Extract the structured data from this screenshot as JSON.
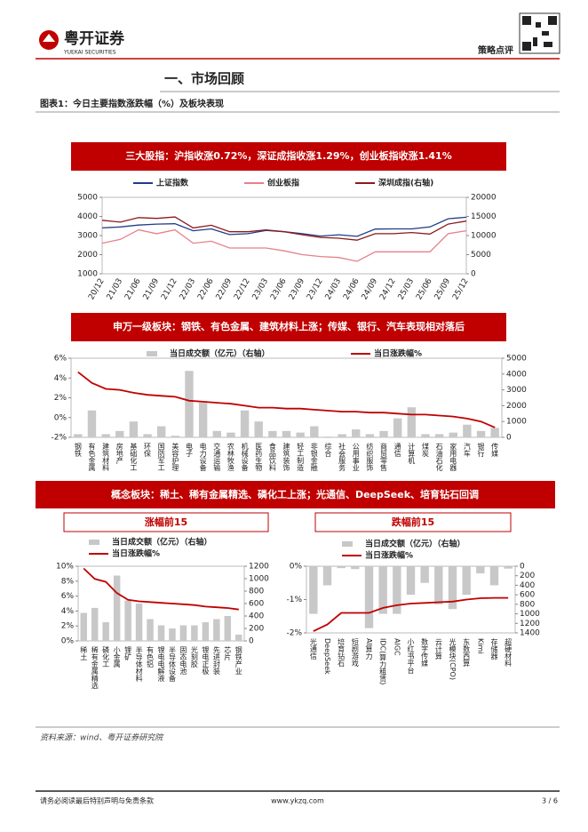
{
  "header": {
    "company": "粤开证券",
    "company_en": "YUEKAI SECURITIES",
    "report_type": "策略点评"
  },
  "section_title": "一、市场回顾",
  "figure_caption": "图表1：今日主要指数涨跌幅（%）及板块表现",
  "concept_title": "概念板块：稀土、稀有金属精选、磷化工上涨；光通信、DeepSeek、培育钻石回调",
  "chart_data": [
    {
      "type": "line",
      "title": "三大股指：沪指收涨0.72%，深证成指收涨1.29%，创业板指收涨1.41%",
      "categories": [
        "20/12",
        "21/03",
        "21/06",
        "21/09",
        "21/12",
        "22/03",
        "22/06",
        "22/09",
        "22/12",
        "23/03",
        "23/06",
        "23/09",
        "23/12",
        "24/03",
        "24/06",
        "24/09",
        "24/12",
        "25/03",
        "25/06",
        "25/09",
        "25/12"
      ],
      "series": [
        {
          "name": "上证指数",
          "color": "#1f3c88",
          "values": [
            3400,
            3450,
            3550,
            3600,
            3620,
            3250,
            3350,
            3050,
            3100,
            3270,
            3200,
            3100,
            2970,
            3040,
            2960,
            3340,
            3350,
            3350,
            3450,
            3880,
            3960
          ]
        },
        {
          "name": "创业板指",
          "color": "#e8808a",
          "values": [
            2600,
            2800,
            3300,
            3100,
            3300,
            2600,
            2700,
            2350,
            2350,
            2350,
            2200,
            2000,
            1900,
            1850,
            1650,
            2150,
            2150,
            2150,
            2150,
            3100,
            3250
          ]
        },
        {
          "name": "深圳成指(右轴)",
          "color": "#8b1a1a",
          "axis": "y2",
          "values": [
            14000,
            13500,
            14700,
            14500,
            14850,
            12000,
            12700,
            11000,
            11000,
            11500,
            11000,
            10200,
            9500,
            9300,
            8800,
            10500,
            10500,
            10800,
            10400,
            13000,
            13800
          ]
        }
      ],
      "ylim": [
        1000,
        5000
      ],
      "yticks": [
        1000,
        2000,
        3000,
        4000,
        5000
      ],
      "y2lim": [
        0,
        20000
      ],
      "y2ticks": [
        0,
        5000,
        10000,
        15000,
        20000
      ]
    },
    {
      "type": "bar-line",
      "title": "申万一级板块：钢铁、有色金属、建筑材料上涨；传媒、银行、汽车表现相对落后",
      "categories": [
        "钢铁",
        "有色金属",
        "建筑材料",
        "房地产",
        "基础化工",
        "环保",
        "国防军工",
        "美容护理",
        "电子",
        "电力设备",
        "交通运输",
        "农林牧渔",
        "机械设备",
        "医药生物",
        "食品饮料",
        "建筑装饰",
        "轻工制造",
        "非银金融",
        "综合",
        "社会服务",
        "公用事业",
        "纺织服饰",
        "商贸零售",
        "通信",
        "计算机",
        "煤炭",
        "石油石化",
        "家用电器",
        "汽车",
        "银行",
        "传媒"
      ],
      "series": [
        {
          "name": "当日成交额（亿元）（右轴）",
          "type": "bar",
          "color": "#c8c8c8",
          "axis": "y2",
          "values": [
            200,
            1700,
            200,
            400,
            1000,
            200,
            700,
            100,
            4200,
            2200,
            400,
            300,
            1700,
            1000,
            400,
            400,
            300,
            700,
            50,
            200,
            500,
            200,
            400,
            1200,
            1900,
            200,
            200,
            300,
            800,
            400,
            600
          ]
        },
        {
          "name": "当日涨跌幅%",
          "type": "line",
          "color": "#c00000",
          "values": [
            4.6,
            3.5,
            2.9,
            2.8,
            2.5,
            2.3,
            2.2,
            2.1,
            1.7,
            1.6,
            1.5,
            1.4,
            1.2,
            1.0,
            1.0,
            0.9,
            0.9,
            0.8,
            0.7,
            0.6,
            0.6,
            0.5,
            0.5,
            0.4,
            0.3,
            0.3,
            0.2,
            0.1,
            -0.1,
            -0.4,
            -1.0
          ]
        }
      ],
      "ylim": [
        -2,
        6
      ],
      "yticks": [
        {
          "value": -2,
          "label": "-2%"
        },
        {
          "value": 0,
          "label": "0%"
        },
        {
          "value": 2,
          "label": "2%"
        },
        {
          "value": 4,
          "label": "4%"
        },
        {
          "value": 6,
          "label": "6%"
        }
      ],
      "y2lim": [
        0,
        5000
      ],
      "y2ticks": [
        0,
        1000,
        2000,
        3000,
        4000,
        5000
      ]
    },
    {
      "type": "bar-line",
      "title": "涨幅前15",
      "categories": [
        "稀土",
        "稀有金属精选",
        "磷化工",
        "小金属",
        "锂矿",
        "半导体材料",
        "有色铝",
        "锂电电解液",
        "半导体设备",
        "固态电池",
        "光刻胶",
        "锂电正极",
        "先进封装",
        "芯片",
        "钢铁产业"
      ],
      "series": [
        {
          "name": "当日成交额（亿元）（右轴）",
          "type": "bar",
          "color": "#c8c8c8",
          "axis": "y2",
          "values": [
            450,
            530,
            300,
            1050,
            650,
            600,
            350,
            250,
            200,
            250,
            250,
            300,
            350,
            400,
            100
          ]
        },
        {
          "name": "当日涨跌幅%",
          "type": "line",
          "color": "#c00000",
          "values": [
            9.7,
            8.3,
            7.9,
            6.4,
            5.5,
            5.3,
            5.2,
            5.1,
            5.0,
            4.9,
            4.8,
            4.6,
            4.5,
            4.4,
            4.2
          ]
        }
      ],
      "ylim": [
        0,
        10
      ],
      "yticks": [
        {
          "value": 0,
          "label": "0%"
        },
        {
          "value": 2,
          "label": "2%"
        },
        {
          "value": 4,
          "label": "4%"
        },
        {
          "value": 6,
          "label": "6%"
        },
        {
          "value": 8,
          "label": "8%"
        },
        {
          "value": 10,
          "label": "10%"
        }
      ],
      "y2lim": [
        0,
        1200
      ],
      "y2ticks": [
        0,
        200,
        400,
        600,
        800,
        1000,
        1200
      ]
    },
    {
      "type": "bar-line",
      "title": "跌幅前15",
      "categories": [
        "光通信",
        "DeepSeek",
        "培育钻石",
        "短剧游戏",
        "AI算力",
        "IDC(算力租赁)",
        "AIGC",
        "小红书平台",
        "数字传媒",
        "云计算",
        "光模块(CPO)",
        "东数西算",
        "Kimi",
        "存储器",
        "超硬材料"
      ],
      "series": [
        {
          "name": "当日成交额（亿元）（右轴）",
          "type": "bar",
          "color": "#c8c8c8",
          "axis": "y2",
          "values": [
            1000,
            400,
            40,
            60,
            1300,
            1000,
            1000,
            600,
            350,
            800,
            900,
            600,
            150,
            400,
            50
          ]
        },
        {
          "name": "当日涨跌幅%",
          "type": "line",
          "color": "#c00000",
          "values": [
            -1.95,
            -1.75,
            -1.4,
            -1.4,
            -1.4,
            -1.25,
            -1.17,
            -1.12,
            -1.1,
            -1.08,
            -1.06,
            -1.0,
            -0.96,
            -0.95,
            -0.95
          ]
        }
      ],
      "ylim": [
        -2,
        0
      ],
      "yticks": [
        {
          "value": -2,
          "label": "-2%"
        },
        {
          "value": -1,
          "label": "-1%"
        },
        {
          "value": 0,
          "label": "0%"
        }
      ],
      "y2lim": [
        1400,
        0
      ],
      "y2ticks": [
        0,
        200,
        400,
        600,
        800,
        1000,
        1200,
        1400
      ]
    }
  ],
  "source": "资料来源：wind、粤开证券研究院",
  "footer": {
    "disclaimer": "请务必阅读最后特别声明与免责条款",
    "website": "www.ykzq.com",
    "page": "3 / 6"
  }
}
